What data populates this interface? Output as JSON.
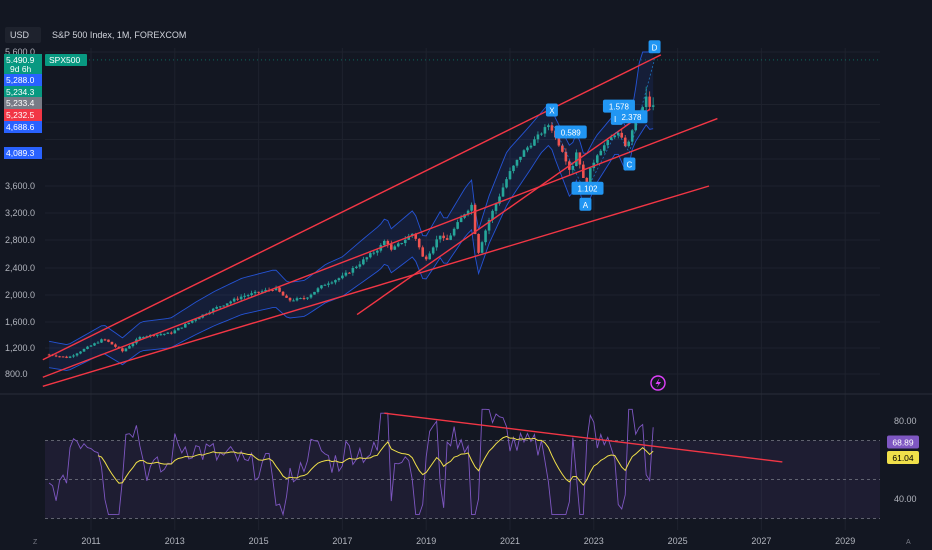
{
  "header": {
    "currency": "USD",
    "symbol_line": "S&P 500 Index, 1M, FOREXCOM"
  },
  "colors": {
    "background": "#131722",
    "up": "#26a69a",
    "down": "#ef5350",
    "trendline": "#f23645",
    "band": "#2962ff",
    "rsi": "#7e57c2",
    "rsi_ma": "#f0e04a",
    "label_bg": "#2196f3"
  },
  "chart_data": [
    {
      "type": "candlestick",
      "title": "S&P 500 Index, 1M, FOREXCOM",
      "x_ticks": [
        "2011",
        "2013",
        "2015",
        "2017",
        "2019",
        "2021",
        "2023",
        "2025",
        "2027",
        "2029"
      ],
      "y_ticks": [
        "800.0",
        "1,200.0",
        "1,600.0",
        "2,000.0",
        "2,400.0",
        "2,800.0",
        "3,200.0",
        "3,600.0",
        "5,600.0"
      ],
      "ylim": [
        800,
        5600
      ],
      "price_tags": [
        {
          "text": "5,490.9",
          "color": "#089981",
          "value": 5490.9
        },
        {
          "text": "9d 6h",
          "color": "#089981",
          "value": 5420
        },
        {
          "text": "5,288.0",
          "color": "#2962ff",
          "value": 5288.0
        },
        {
          "text": "5,234.3",
          "color": "#089981",
          "value": 5234.3
        },
        {
          "text": "5,233.4",
          "color": "#787b86",
          "value": 5233.4
        },
        {
          "text": "5,232.5",
          "color": "#f23645",
          "value": 5232.5
        },
        {
          "text": "4,688.6",
          "color": "#2962ff",
          "value": 4688.6
        },
        {
          "text": "4,089.3",
          "color": "#2962ff",
          "value": 4089.3
        }
      ],
      "symbol_tag": "SPX500",
      "pattern_points": [
        {
          "label": "X",
          "date": 2022.0,
          "price": 4790
        },
        {
          "label": "A",
          "date": 2022.8,
          "price": 3500
        },
        {
          "label": "B",
          "date": 2023.55,
          "price": 4600
        },
        {
          "label": "C",
          "date": 2023.85,
          "price": 4100
        },
        {
          "label": "D",
          "date": 2024.45,
          "price": 5500
        }
      ],
      "ratios": [
        {
          "text": "0.589",
          "date": 2022.45,
          "price": 4560
        },
        {
          "text": "1.578",
          "date": 2023.6,
          "price": 5150
        },
        {
          "text": "2.378",
          "date": 2023.9,
          "price": 4910
        },
        {
          "text": "1.102",
          "date": 2022.85,
          "price": 3560
        }
      ],
      "trendlines": [
        {
          "from": [
            2009.85,
            1020
          ],
          "to": [
            2024.6,
            5560
          ]
        },
        {
          "from": [
            2009.85,
            750
          ],
          "to": [
            2025.95,
            4880
          ]
        },
        {
          "from": [
            2009.85,
            610
          ],
          "to": [
            2025.75,
            3600
          ]
        },
        {
          "from": [
            2017.35,
            1710
          ],
          "to": [
            2024.35,
            5100
          ]
        }
      ]
    },
    {
      "type": "line",
      "x_ticks": [
        "2011",
        "2013",
        "2015",
        "2017",
        "2019",
        "2021",
        "2023",
        "2025",
        "2027",
        "2029"
      ],
      "y_ticks": [
        "80.00",
        "40.00"
      ],
      "ylim": [
        25,
        90
      ],
      "series": [],
      "value_tags": [
        {
          "text": "68.89",
          "color": "#7e57c2"
        },
        {
          "text": "61.04",
          "color": "#f0e04a"
        }
      ],
      "divergence_line": {
        "from": [
          2018.0,
          84
        ],
        "to": [
          2027.5,
          59
        ]
      }
    }
  ]
}
